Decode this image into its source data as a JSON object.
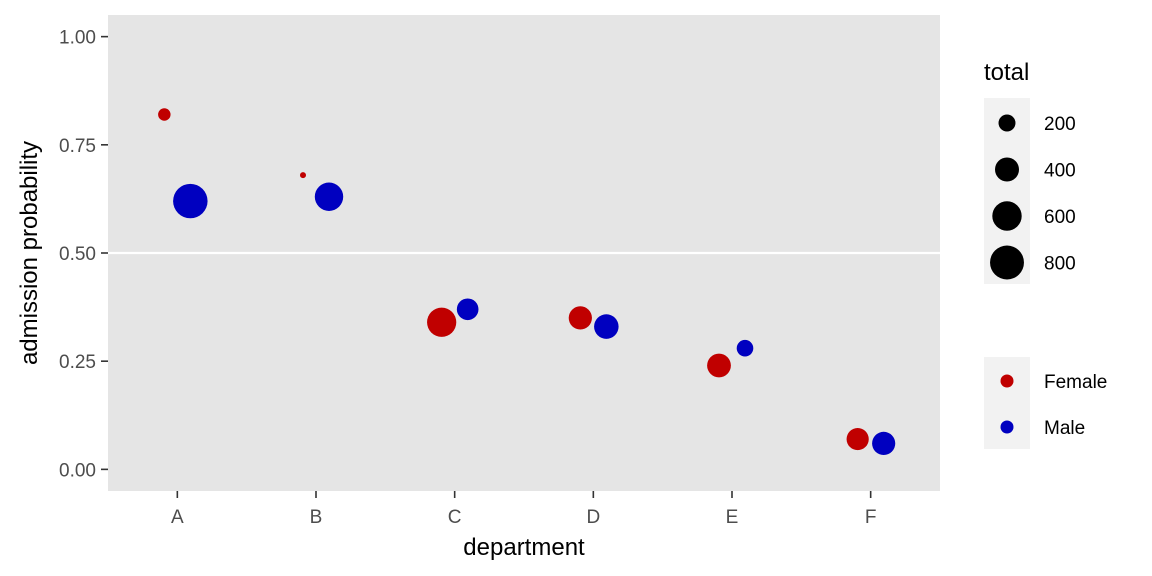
{
  "chart_data": {
    "type": "scatter",
    "title": "",
    "xlabel": "department",
    "ylabel": "admission probability",
    "categories": [
      "A",
      "B",
      "C",
      "D",
      "E",
      "F"
    ],
    "ylim": [
      -0.05,
      1.05
    ],
    "yticks": [
      0.0,
      0.25,
      0.5,
      0.75,
      1.0
    ],
    "ytick_labels": [
      "0.00",
      "0.25",
      "0.50",
      "0.75",
      "1.00"
    ],
    "grid": true,
    "reference_line_y": 0.5,
    "size_variable": "total",
    "size_legend": {
      "title": "total",
      "breaks": [
        200,
        400,
        600,
        800
      ],
      "labels": [
        "200",
        "400",
        "600",
        "800"
      ]
    },
    "color_legend": {
      "labels": [
        "Female",
        "Male"
      ],
      "colors": [
        "#c00000",
        "#0000c0"
      ]
    },
    "legend_position": "right",
    "series": [
      {
        "name": "Female",
        "color": "#c00000",
        "x": [
          "A",
          "B",
          "C",
          "D",
          "E",
          "F"
        ],
        "y": [
          0.82,
          0.68,
          0.34,
          0.35,
          0.24,
          0.07
        ],
        "total": [
          108,
          25,
          593,
          375,
          393,
          341
        ]
      },
      {
        "name": "Male",
        "color": "#0000c0",
        "x": [
          "A",
          "B",
          "C",
          "D",
          "E",
          "F"
        ],
        "y": [
          0.62,
          0.63,
          0.37,
          0.33,
          0.28,
          0.06
        ],
        "total": [
          825,
          560,
          325,
          417,
          191,
          373
        ]
      }
    ]
  }
}
